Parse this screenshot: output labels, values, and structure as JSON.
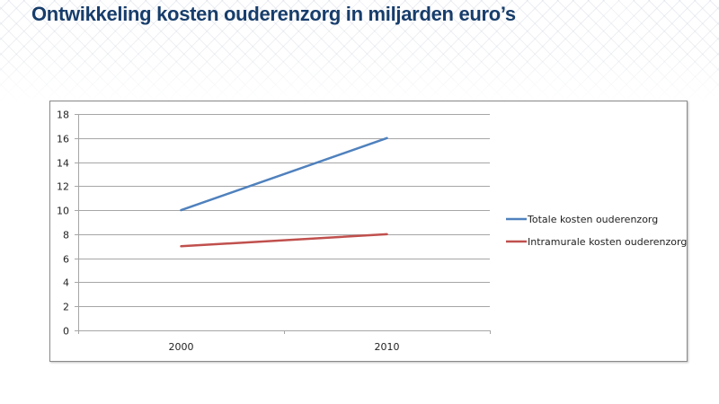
{
  "page": {
    "title": "Ontwikkeling kosten ouderenzorg in miljarden euro’s"
  },
  "chart_data": {
    "type": "line",
    "title": "Ontwikkeling kosten ouderenzorg in miljarden euro’s",
    "xlabel": "",
    "ylabel": "",
    "categories": [
      "2000",
      "2010"
    ],
    "ylim": [
      0,
      18
    ],
    "yticks": [
      0,
      2,
      4,
      6,
      8,
      10,
      12,
      14,
      16,
      18
    ],
    "ytick_labels": [
      "0",
      "2",
      "4",
      "6",
      "8",
      "10",
      "12",
      "14",
      "16",
      "18"
    ],
    "grid": true,
    "legend_position": "right",
    "series": [
      {
        "name": "Totale kosten ouderenzorg",
        "values": [
          10,
          16
        ],
        "color": "#4f81bd"
      },
      {
        "name": "Intramurale kosten ouderenzorg",
        "values": [
          7,
          8
        ],
        "color": "#c0504d"
      }
    ]
  }
}
